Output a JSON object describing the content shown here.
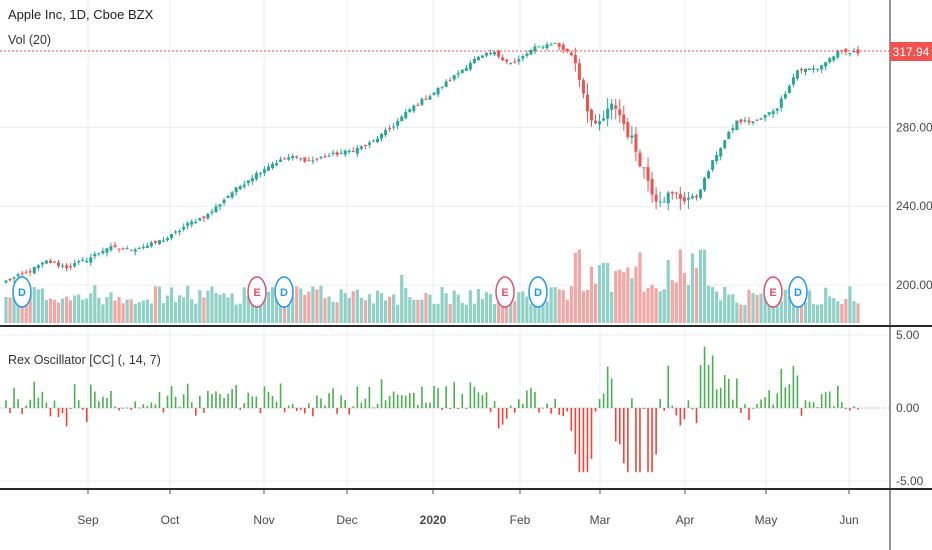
{
  "header": {
    "symbol_title": "Apple Inc, 1D, Cboe BZX",
    "volume_label": "Vol (20)"
  },
  "last_price": "317.94",
  "oscillator": {
    "label": "Rex Oscillator [CC] (, 14, 7)"
  },
  "colors": {
    "up": "#26a69a",
    "down": "#ef5350",
    "vol_up": "#8fd0c7",
    "vol_down": "#f3a6a4",
    "osc_up": "#4caf50",
    "osc_down": "#f44336",
    "price_line": "#ef5350",
    "earnings": "#e0506e",
    "dividend": "#2196f3",
    "grid": "#e9edf2"
  },
  "chart_data": [
    {
      "type": "candlestick",
      "title": "Apple Inc, 1D, Cboe BZX",
      "x_tick_labels": [
        "Sep",
        "Oct",
        "Nov",
        "Dec",
        "2020",
        "Feb",
        "Mar",
        "Apr",
        "May",
        "Jun"
      ],
      "y_tick_labels": [
        "200.00",
        "240.00",
        "280.00"
      ],
      "ylim": [
        180,
        335
      ],
      "last_price": 317.94,
      "grid": true,
      "weekly_closes": [
        {
          "week": "Aug 5",
          "close": 202
        },
        {
          "week": "Aug 12",
          "close": 206
        },
        {
          "week": "Aug 19",
          "close": 212
        },
        {
          "week": "Aug 26",
          "close": 209
        },
        {
          "week": "Sep 2",
          "close": 213
        },
        {
          "week": "Sep 9",
          "close": 219
        },
        {
          "week": "Sep 16",
          "close": 218
        },
        {
          "week": "Sep 23",
          "close": 220
        },
        {
          "week": "Sep 30",
          "close": 224
        },
        {
          "week": "Oct 7",
          "close": 231
        },
        {
          "week": "Oct 14",
          "close": 236
        },
        {
          "week": "Oct 21",
          "close": 246
        },
        {
          "week": "Oct 28",
          "close": 254
        },
        {
          "week": "Nov 4",
          "close": 261
        },
        {
          "week": "Nov 11",
          "close": 265
        },
        {
          "week": "Nov 18",
          "close": 263
        },
        {
          "week": "Nov 25",
          "close": 266
        },
        {
          "week": "Dec 2",
          "close": 268
        },
        {
          "week": "Dec 9",
          "close": 272
        },
        {
          "week": "Dec 16",
          "close": 280
        },
        {
          "week": "Dec 23",
          "close": 290
        },
        {
          "week": "Dec 30",
          "close": 297
        },
        {
          "week": "Jan 6",
          "close": 305
        },
        {
          "week": "Jan 13",
          "close": 314
        },
        {
          "week": "Jan 20",
          "close": 318
        },
        {
          "week": "Jan 27",
          "close": 312
        },
        {
          "week": "Feb 3",
          "close": 320
        },
        {
          "week": "Feb 10",
          "close": 323
        },
        {
          "week": "Feb 17",
          "close": 316
        },
        {
          "week": "Feb 24",
          "close": 278
        },
        {
          "week": "Mar 2",
          "close": 292
        },
        {
          "week": "Mar 9",
          "close": 270
        },
        {
          "week": "Mar 16",
          "close": 245
        },
        {
          "week": "Mar 23",
          "close": 245
        },
        {
          "week": "Mar 30",
          "close": 244
        },
        {
          "week": "Apr 6",
          "close": 266
        },
        {
          "week": "Apr 13",
          "close": 283
        },
        {
          "week": "Apr 20",
          "close": 283
        },
        {
          "week": "Apr 27",
          "close": 290
        },
        {
          "week": "May 4",
          "close": 309
        },
        {
          "week": "May 11",
          "close": 310
        },
        {
          "week": "May 18",
          "close": 318
        },
        {
          "week": "May 25",
          "close": 318
        }
      ]
    },
    {
      "type": "bar",
      "title": "Vol (20)",
      "series_name": "Volume"
    },
    {
      "type": "bar",
      "title": "Rex Oscillator [CC] (, 14, 7)",
      "y_tick_labels": [
        "5.00",
        "0.00",
        "-5.00"
      ],
      "ylim": [
        -5,
        5
      ],
      "zero_line": true
    }
  ],
  "events": {
    "earnings_label": "E",
    "dividend_label": "D",
    "earnings_dates": [
      "Oct 30",
      "Jan 28",
      "Apr 30"
    ],
    "dividend_dates": [
      "Aug 9",
      "Nov 7",
      "Feb 7",
      "May 8"
    ]
  }
}
